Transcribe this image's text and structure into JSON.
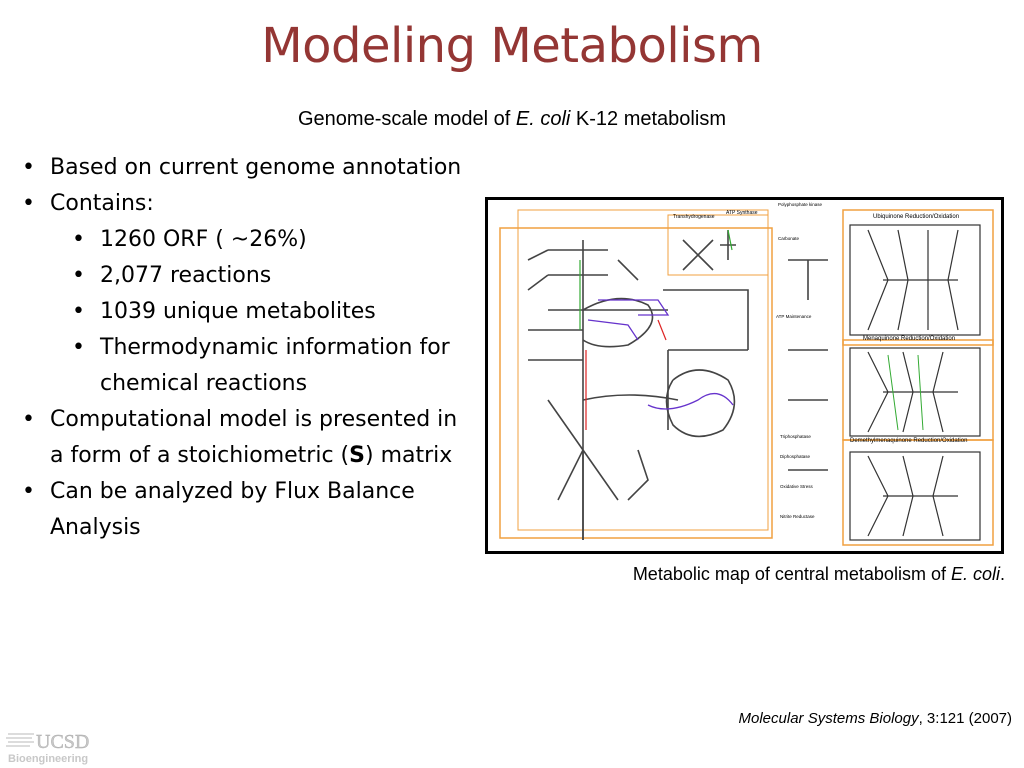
{
  "title": "Modeling Metabolism",
  "subtitle": {
    "pre": "Genome-scale model of ",
    "italic": "E. coli",
    "post": " K-12 metabolism"
  },
  "bullets": {
    "item1": "Based on current genome annotation",
    "item2": "Contains:",
    "sub": [
      "1260 ORF ( ~26%)",
      "2,077 reactions",
      "1039 unique metabolites",
      "Thermodynamic information for chemical reactions"
    ],
    "item3_pre": "Computational model is presented in a form of a stoichiometric (",
    "item3_bold": "S",
    "item3_post": ") matrix",
    "item4": "Can be analyzed by Flux Balance Analysis"
  },
  "figure": {
    "labels": {
      "transhydrogenase": "Transhydrogenase",
      "atp_synthase": "ATP Synthase",
      "polyphosphate": "Polyphosphate kinase",
      "carbonate": "Carbonate",
      "atp_maintenance": "ATP Maintenance",
      "ubiquinone": "Ubiquinone Reduction/Oxidation",
      "menaquinone": "Menaquinone Reduction/Oxidation",
      "demethyl": "Demethylmenaquinone Reduction/Oxidation",
      "triphosphatase": "Triphosphatase",
      "diphosphatase": "Diphosphatase",
      "oxidative": "Oxidative Stress",
      "nitrite": "Nitrite Reductase"
    }
  },
  "caption": {
    "pre": "Metabolic map of central metabolism of ",
    "italic": "E. coli",
    "post": "."
  },
  "citation": {
    "journal": "Molecular Systems Biology",
    "ref": ", 3:121 (2007)"
  },
  "logo": {
    "line1": "UCSD",
    "line2": "Bioengineering"
  },
  "colors": {
    "title": "#943634",
    "map_orange": "#f0a040",
    "map_purple": "#6633cc",
    "map_green": "#33aa33",
    "map_red": "#dd2222"
  }
}
